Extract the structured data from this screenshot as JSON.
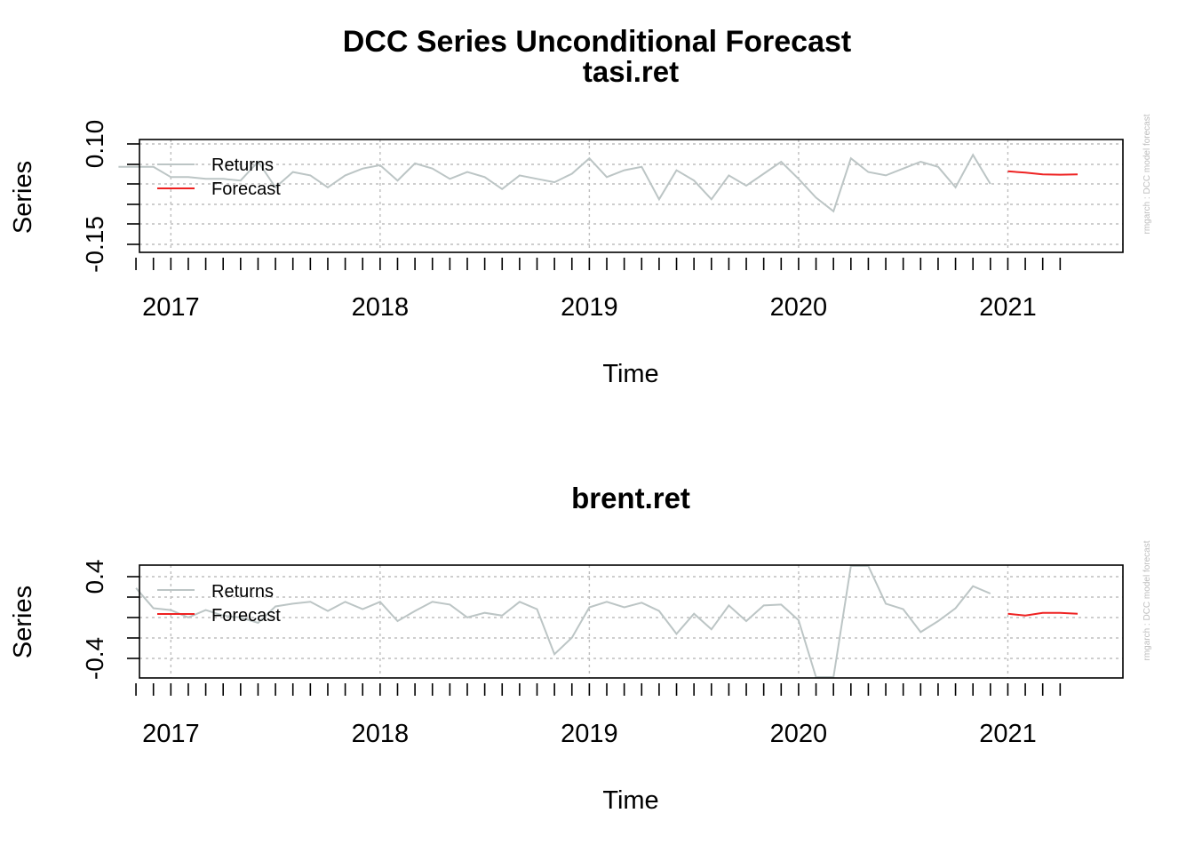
{
  "main_title": "DCC Series Unconditional Forecast",
  "watermark": "rmgarch  :  DCC model forecast",
  "colors": {
    "returns": "#bcc5c5",
    "forecast": "#ee2222",
    "grid": "#bebebe"
  },
  "chart_data": [
    {
      "type": "line",
      "title": "tasi.ret",
      "xlabel": "Time",
      "ylabel": "Series",
      "xlim": [
        2016.85,
        2021.55
      ],
      "ylim": [
        -0.2,
        0.13
      ],
      "y_tick_labels": [
        "-0.15",
        "0.10"
      ],
      "x_tick_labels": [
        "2017",
        "2018",
        "2019",
        "2020",
        "2021"
      ],
      "grid": true,
      "legend": {
        "position": "top-left",
        "entries": [
          "Returns",
          "Forecast"
        ]
      },
      "series": [
        {
          "name": "Returns",
          "x": [
            2016.75,
            2016.8333,
            2016.9167,
            2017.0,
            2017.0833,
            2017.1667,
            2017.25,
            2017.3333,
            2017.4167,
            2017.5,
            2017.5833,
            2017.6667,
            2017.75,
            2017.8333,
            2017.9167,
            2018.0,
            2018.0833,
            2018.1667,
            2018.25,
            2018.3333,
            2018.4167,
            2018.5,
            2018.5833,
            2018.6667,
            2018.75,
            2018.8333,
            2018.9167,
            2019.0,
            2019.0833,
            2019.1667,
            2019.25,
            2019.3333,
            2019.4167,
            2019.5,
            2019.5833,
            2019.6667,
            2019.75,
            2019.8333,
            2019.9167,
            2020.0,
            2020.0833,
            2020.1667,
            2020.25,
            2020.3333,
            2020.4167,
            2020.5,
            2020.5833,
            2020.6667,
            2020.75,
            2020.8333,
            2020.9167
          ],
          "y": [
            0.05,
            0.05,
            0.05,
            0.02,
            0.02,
            0.015,
            0.015,
            0.01,
            0.065,
            -0.01,
            0.035,
            0.025,
            -0.01,
            0.025,
            0.045,
            0.055,
            0.01,
            0.06,
            0.045,
            0.015,
            0.035,
            0.02,
            -0.015,
            0.025,
            0.015,
            0.005,
            0.03,
            0.075,
            0.02,
            0.04,
            0.05,
            -0.045,
            0.04,
            0.01,
            -0.045,
            0.025,
            -0.005,
            0.03,
            0.065,
            0.015,
            -0.04,
            -0.08,
            0.075,
            0.035,
            0.025,
            0.045,
            0.065,
            0.05,
            -0.01,
            0.085,
            0.0
          ]
        },
        {
          "name": "Forecast",
          "x": [
            2021.0,
            2021.0833,
            2021.1667,
            2021.25,
            2021.3333
          ],
          "y": [
            0.037,
            0.033,
            0.028,
            0.027,
            0.028
          ]
        }
      ]
    },
    {
      "type": "line",
      "title": "brent.ret",
      "xlabel": "Time",
      "ylabel": "Series",
      "xlim": [
        2016.85,
        2021.55
      ],
      "ylim": [
        -0.68,
        0.55
      ],
      "y_tick_labels": [
        "-0.4",
        "0.4"
      ],
      "x_tick_labels": [
        "2017",
        "2018",
        "2019",
        "2020",
        "2021"
      ],
      "grid": true,
      "legend": {
        "position": "top-left",
        "entries": [
          "Returns",
          "Forecast"
        ]
      },
      "series": [
        {
          "name": "Returns",
          "x": [
            2016.8333,
            2016.9167,
            2017.0,
            2017.0833,
            2017.1667,
            2017.25,
            2017.3333,
            2017.4167,
            2017.5,
            2017.5833,
            2017.6667,
            2017.75,
            2017.8333,
            2017.9167,
            2018.0,
            2018.0833,
            2018.1667,
            2018.25,
            2018.3333,
            2018.4167,
            2018.5,
            2018.5833,
            2018.6667,
            2018.75,
            2018.8333,
            2018.9167,
            2019.0,
            2019.0833,
            2019.1667,
            2019.25,
            2019.3333,
            2019.4167,
            2019.5,
            2019.5833,
            2019.6667,
            2019.75,
            2019.8333,
            2019.9167,
            2020.0,
            2020.0833,
            2020.1667,
            2020.25,
            2020.3333,
            2020.4167,
            2020.5,
            2020.5833,
            2020.6667,
            2020.75,
            2020.8333,
            2020.9167
          ],
          "y": [
            0.3,
            0.08,
            0.06,
            -0.02,
            0.06,
            0.0,
            -0.02,
            -0.08,
            0.1,
            0.13,
            0.15,
            0.05,
            0.15,
            0.07,
            0.15,
            -0.06,
            0.05,
            0.15,
            0.12,
            -0.02,
            0.03,
            0.0,
            0.15,
            0.07,
            -0.42,
            -0.24,
            0.09,
            0.15,
            0.09,
            0.14,
            0.05,
            -0.2,
            0.02,
            -0.15,
            0.11,
            -0.06,
            0.11,
            0.12,
            -0.05,
            -1.0,
            -1.05,
            0.87,
            0.62,
            0.13,
            0.07,
            -0.18,
            -0.06,
            0.08,
            0.32,
            0.24
          ]
        },
        {
          "name": "Forecast",
          "x": [
            2021.0,
            2021.0833,
            2021.1667,
            2021.25,
            2021.3333
          ],
          "y": [
            0.02,
            0.0,
            0.03,
            0.03,
            0.02
          ]
        }
      ]
    }
  ]
}
